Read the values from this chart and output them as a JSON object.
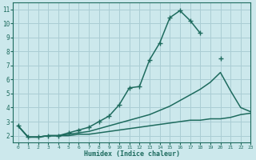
{
  "bg_color": "#cce8ec",
  "grid_color": "#aacdd4",
  "line_color": "#1e6b5e",
  "xlabel": "Humidex (Indice chaleur)",
  "xlim": [
    -0.5,
    23
  ],
  "ylim": [
    1.5,
    11.5
  ],
  "xticks": [
    0,
    1,
    2,
    3,
    4,
    5,
    6,
    7,
    8,
    9,
    10,
    11,
    12,
    13,
    14,
    15,
    16,
    17,
    18,
    19,
    20,
    21,
    22,
    23
  ],
  "yticks": [
    2,
    3,
    4,
    5,
    6,
    7,
    8,
    9,
    10,
    11
  ],
  "series": [
    {
      "x": [
        0,
        1,
        2,
        3,
        4,
        5,
        6,
        7,
        8,
        9,
        10,
        11,
        12,
        13,
        14,
        15,
        16,
        17,
        18,
        19,
        20,
        21,
        22,
        23
      ],
      "y": [
        2.7,
        1.9,
        1.9,
        2.0,
        2.0,
        2.2,
        2.4,
        2.6,
        3.0,
        3.4,
        4.2,
        5.4,
        5.5,
        7.4,
        8.6,
        10.4,
        10.9,
        10.2,
        9.3,
        null,
        7.5,
        null,
        null,
        null
      ],
      "use_markers": true,
      "marker": "+",
      "markersize": 4,
      "linewidth": 1.1
    },
    {
      "x": [
        0,
        1,
        2,
        3,
        4,
        5,
        6,
        7,
        8,
        9,
        10,
        11,
        12,
        13,
        14,
        15,
        16,
        17,
        18,
        19,
        20,
        21,
        22,
        23
      ],
      "y": [
        2.7,
        1.9,
        1.9,
        2.0,
        2.0,
        2.1,
        2.2,
        2.3,
        2.5,
        2.7,
        2.9,
        3.1,
        3.3,
        3.5,
        3.8,
        4.1,
        4.5,
        4.9,
        5.3,
        5.8,
        6.5,
        5.2,
        4.0,
        3.7
      ],
      "use_markers": false,
      "marker": null,
      "markersize": 0,
      "linewidth": 1.1
    },
    {
      "x": [
        0,
        1,
        2,
        3,
        4,
        5,
        6,
        7,
        8,
        9,
        10,
        11,
        12,
        13,
        14,
        15,
        16,
        17,
        18,
        19,
        20,
        21,
        22,
        23
      ],
      "y": [
        2.7,
        1.9,
        1.9,
        2.0,
        2.0,
        2.0,
        2.1,
        2.1,
        2.2,
        2.3,
        2.4,
        2.5,
        2.6,
        2.7,
        2.8,
        2.9,
        3.0,
        3.1,
        3.1,
        3.2,
        3.2,
        3.3,
        3.5,
        3.6
      ],
      "use_markers": false,
      "marker": null,
      "markersize": 0,
      "linewidth": 1.1
    }
  ]
}
